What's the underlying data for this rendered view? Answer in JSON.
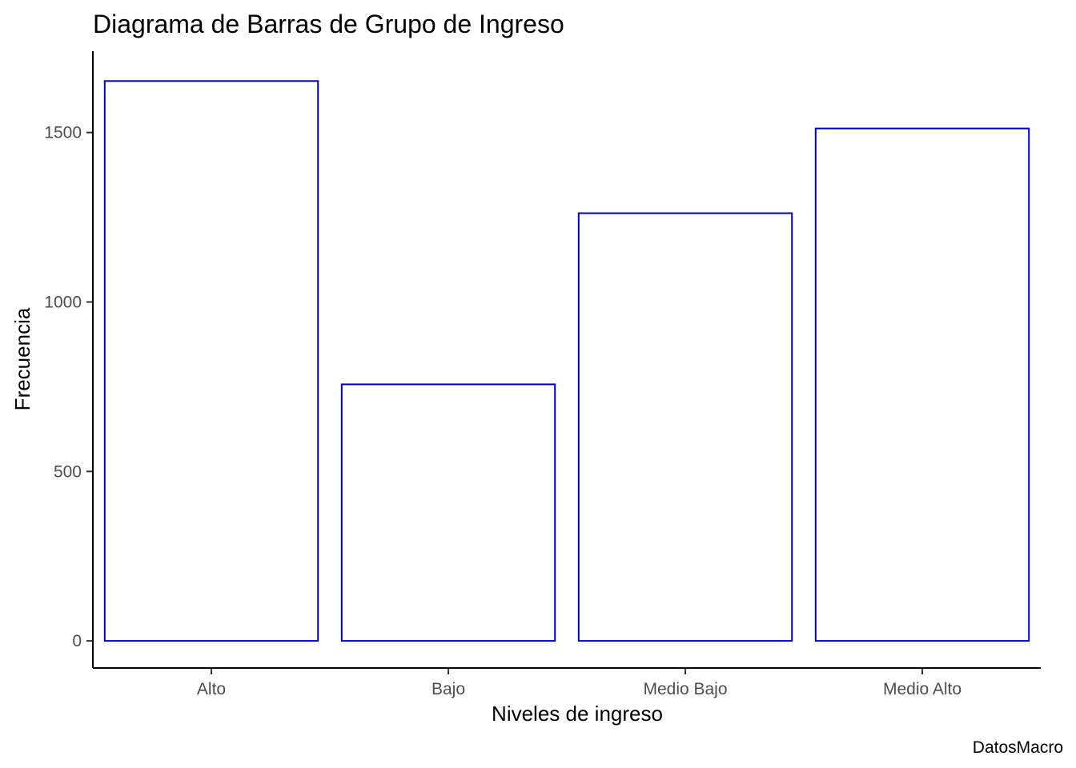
{
  "chart_data": {
    "type": "bar",
    "title": "Diagrama de Barras de Grupo de Ingreso",
    "xlabel": "Niveles de ingreso",
    "ylabel": "Frecuencia",
    "caption": "DatosMacro",
    "categories": [
      "Alto",
      "Bajo",
      "Medio Bajo",
      "Medio Alto"
    ],
    "values": [
      1652,
      757,
      1262,
      1512
    ],
    "yticks": [
      0,
      500,
      1000,
      1500
    ],
    "ylim": [
      -80,
      1740
    ],
    "grid": false,
    "legend": "none",
    "colors": {
      "bar_outline": "#0000cd",
      "bar_fill": "#ffffff",
      "axis": "#000000",
      "tick_text": "#4d4d4d"
    }
  }
}
